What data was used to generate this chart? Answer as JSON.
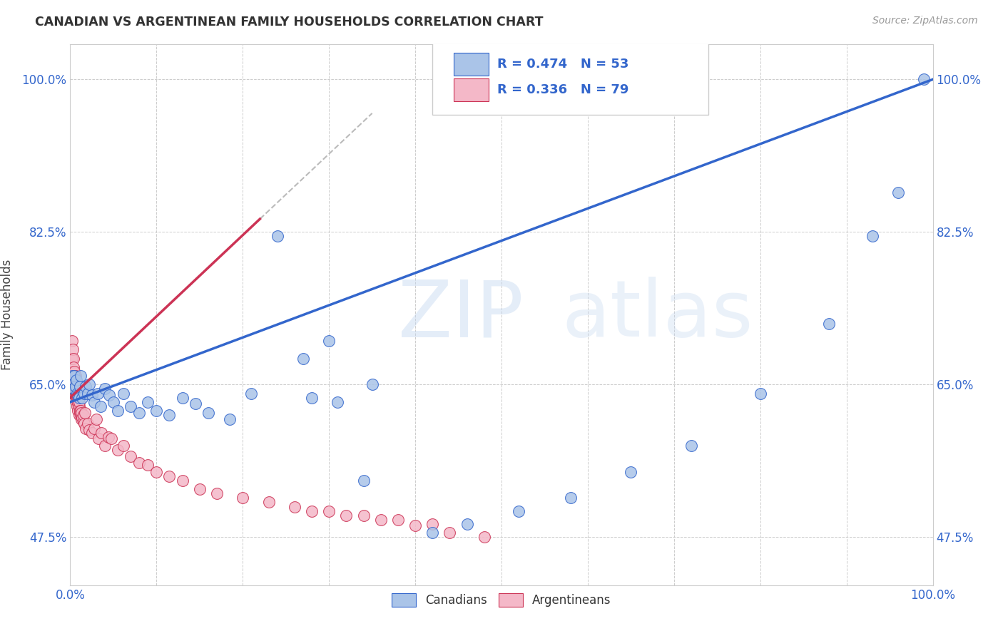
{
  "title": "CANADIAN VS ARGENTINEAN FAMILY HOUSEHOLDS CORRELATION CHART",
  "source": "Source: ZipAtlas.com",
  "ylabel": "Family Households",
  "watermark": "ZIPatlas",
  "canadian_R": 0.474,
  "canadian_N": 53,
  "argentinean_R": 0.336,
  "argentinean_N": 79,
  "canadian_color": "#aac4e8",
  "argentinean_color": "#f4b8c8",
  "canadian_line_color": "#3366cc",
  "argentinean_line_color": "#cc3355",
  "background_color": "#ffffff",
  "grid_color": "#cccccc",
  "canadian_x": [
    0.002,
    0.003,
    0.004,
    0.005,
    0.006,
    0.007,
    0.008,
    0.009,
    0.01,
    0.011,
    0.012,
    0.014,
    0.016,
    0.018,
    0.02,
    0.022,
    0.025,
    0.028,
    0.032,
    0.035,
    0.04,
    0.045,
    0.05,
    0.055,
    0.062,
    0.07,
    0.08,
    0.09,
    0.1,
    0.115,
    0.13,
    0.145,
    0.16,
    0.185,
    0.21,
    0.24,
    0.27,
    0.3,
    0.34,
    0.28,
    0.31,
    0.35,
    0.42,
    0.46,
    0.52,
    0.58,
    0.65,
    0.72,
    0.8,
    0.88,
    0.93,
    0.96,
    0.99
  ],
  "canadian_y": [
    0.66,
    0.65,
    0.645,
    0.66,
    0.648,
    0.655,
    0.64,
    0.638,
    0.635,
    0.648,
    0.66,
    0.635,
    0.64,
    0.648,
    0.64,
    0.65,
    0.638,
    0.63,
    0.64,
    0.625,
    0.645,
    0.638,
    0.63,
    0.62,
    0.64,
    0.625,
    0.618,
    0.63,
    0.62,
    0.615,
    0.635,
    0.628,
    0.618,
    0.61,
    0.64,
    0.82,
    0.68,
    0.7,
    0.54,
    0.635,
    0.63,
    0.65,
    0.48,
    0.49,
    0.505,
    0.52,
    0.55,
    0.58,
    0.64,
    0.72,
    0.82,
    0.87,
    1.0
  ],
  "argentinean_x": [
    0.001,
    0.001,
    0.002,
    0.002,
    0.002,
    0.003,
    0.003,
    0.003,
    0.004,
    0.004,
    0.004,
    0.004,
    0.005,
    0.005,
    0.005,
    0.005,
    0.006,
    0.006,
    0.006,
    0.006,
    0.006,
    0.007,
    0.007,
    0.007,
    0.007,
    0.008,
    0.008,
    0.008,
    0.009,
    0.009,
    0.009,
    0.01,
    0.01,
    0.01,
    0.011,
    0.011,
    0.012,
    0.012,
    0.013,
    0.013,
    0.014,
    0.015,
    0.015,
    0.016,
    0.017,
    0.018,
    0.02,
    0.022,
    0.025,
    0.028,
    0.03,
    0.033,
    0.036,
    0.04,
    0.044,
    0.048,
    0.055,
    0.062,
    0.07,
    0.08,
    0.09,
    0.1,
    0.115,
    0.13,
    0.15,
    0.17,
    0.2,
    0.23,
    0.26,
    0.3,
    0.34,
    0.38,
    0.42,
    0.32,
    0.28,
    0.36,
    0.4,
    0.44,
    0.48
  ],
  "argentinean_y": [
    0.68,
    0.66,
    0.7,
    0.68,
    0.655,
    0.69,
    0.665,
    0.655,
    0.68,
    0.66,
    0.67,
    0.645,
    0.665,
    0.65,
    0.66,
    0.64,
    0.655,
    0.64,
    0.648,
    0.66,
    0.645,
    0.64,
    0.635,
    0.64,
    0.63,
    0.645,
    0.635,
    0.625,
    0.635,
    0.62,
    0.63,
    0.625,
    0.615,
    0.63,
    0.62,
    0.618,
    0.615,
    0.62,
    0.61,
    0.618,
    0.612,
    0.608,
    0.615,
    0.605,
    0.618,
    0.6,
    0.605,
    0.598,
    0.595,
    0.6,
    0.61,
    0.588,
    0.595,
    0.58,
    0.59,
    0.588,
    0.575,
    0.58,
    0.568,
    0.56,
    0.558,
    0.55,
    0.545,
    0.54,
    0.53,
    0.525,
    0.52,
    0.515,
    0.51,
    0.505,
    0.5,
    0.495,
    0.49,
    0.5,
    0.505,
    0.495,
    0.488,
    0.48,
    0.475
  ],
  "xlim": [
    0.0,
    1.0
  ],
  "ylim": [
    0.42,
    1.04
  ],
  "yticks": [
    0.475,
    0.65,
    0.825,
    1.0
  ],
  "ytick_labels": [
    "47.5%",
    "65.0%",
    "82.5%",
    "100.0%"
  ],
  "xticks": [
    0.0,
    0.1,
    0.2,
    0.3,
    0.4,
    0.5,
    0.6,
    0.7,
    0.8,
    0.9,
    1.0
  ],
  "xtick_labels": [
    "0.0%",
    "",
    "",
    "",
    "",
    "",
    "",
    "",
    "",
    "",
    "100.0%"
  ]
}
